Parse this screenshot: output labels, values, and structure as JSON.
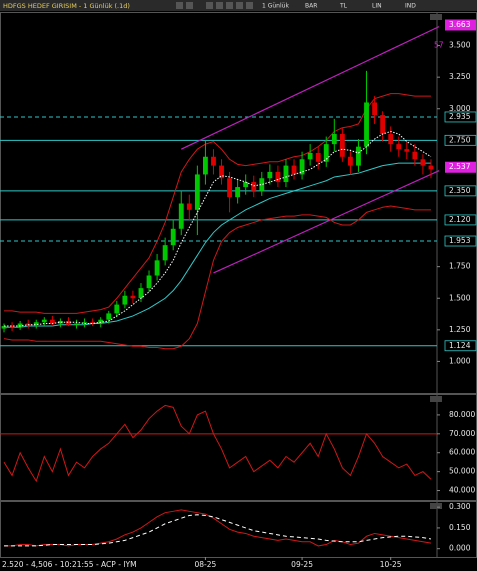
{
  "toolbar": [
    "1 Günlük",
    "BAR",
    "TL",
    "LIN",
    "IND"
  ],
  "status": "2.520 - 4,506 - 10:21:55 - ACP - IYM",
  "chart_data": [
    {
      "type": "candlestick",
      "title": "HDFGS HEDEF GIRISIM - 1 Günlük (.1d)",
      "categories": [
        null,
        null,
        null,
        null,
        null,
        null,
        null,
        null,
        null,
        null,
        null,
        null,
        null,
        null,
        null,
        null,
        null,
        null,
        null,
        null,
        null,
        null,
        null,
        null,
        null,
        "08-25",
        null,
        null,
        null,
        null,
        null,
        null,
        null,
        null,
        null,
        null,
        null,
        "09-25",
        null,
        null,
        null,
        null,
        null,
        null,
        null,
        null,
        null,
        null,
        "10-25",
        null,
        null,
        null,
        null,
        null
      ],
      "open": [
        1.26,
        1.28,
        1.27,
        1.3,
        1.29,
        1.31,
        1.33,
        1.3,
        1.32,
        1.29,
        1.3,
        1.31,
        1.3,
        1.33,
        1.38,
        1.45,
        1.52,
        1.5,
        1.58,
        1.68,
        1.8,
        1.92,
        2.05,
        2.25,
        2.2,
        2.48,
        2.62,
        2.55,
        2.45,
        2.3,
        2.38,
        2.42,
        2.35,
        2.45,
        2.5,
        2.42,
        2.55,
        2.48,
        2.6,
        2.65,
        2.58,
        2.72,
        2.8,
        2.62,
        2.55,
        2.7,
        3.05,
        2.95,
        2.8,
        2.72,
        2.68,
        2.66,
        2.6,
        2.55
      ],
      "high": [
        1.3,
        1.31,
        1.32,
        1.33,
        1.33,
        1.35,
        1.36,
        1.34,
        1.35,
        1.33,
        1.34,
        1.34,
        1.35,
        1.4,
        1.48,
        1.56,
        1.56,
        1.62,
        1.72,
        1.85,
        1.98,
        2.12,
        2.35,
        2.32,
        2.55,
        2.75,
        2.68,
        2.6,
        2.5,
        2.44,
        2.48,
        2.47,
        2.5,
        2.56,
        2.55,
        2.6,
        2.6,
        2.66,
        2.72,
        2.7,
        2.78,
        2.92,
        2.85,
        2.68,
        2.76,
        3.3,
        3.1,
        2.98,
        2.86,
        2.78,
        2.74,
        2.72,
        2.64,
        2.6
      ],
      "low": [
        1.23,
        1.24,
        1.25,
        1.26,
        1.26,
        1.28,
        1.28,
        1.27,
        1.28,
        1.26,
        1.27,
        1.28,
        1.27,
        1.3,
        1.35,
        1.42,
        1.46,
        1.47,
        1.55,
        1.64,
        1.76,
        1.88,
        2.0,
        2.12,
        2.0,
        2.4,
        2.48,
        2.4,
        2.18,
        2.25,
        2.32,
        2.3,
        2.31,
        2.4,
        2.38,
        2.38,
        2.44,
        2.44,
        2.55,
        2.52,
        2.54,
        2.66,
        2.58,
        2.48,
        2.5,
        2.64,
        2.88,
        2.74,
        2.66,
        2.62,
        2.6,
        2.55,
        2.48,
        2.45
      ],
      "close": [
        1.28,
        1.27,
        1.3,
        1.29,
        1.31,
        1.33,
        1.3,
        1.32,
        1.29,
        1.3,
        1.31,
        1.3,
        1.33,
        1.38,
        1.45,
        1.52,
        1.5,
        1.58,
        1.68,
        1.8,
        1.92,
        2.05,
        2.25,
        2.2,
        2.48,
        2.62,
        2.55,
        2.45,
        2.3,
        2.38,
        2.42,
        2.35,
        2.45,
        2.5,
        2.42,
        2.55,
        2.48,
        2.6,
        2.65,
        2.58,
        2.72,
        2.8,
        2.62,
        2.55,
        2.7,
        3.05,
        2.95,
        2.8,
        2.72,
        2.68,
        2.66,
        2.6,
        2.55,
        2.52
      ],
      "up_color": "#00c800",
      "down_color": "#e00000",
      "series": [
        {
          "color": "#d01818",
          "style": "solid",
          "values": [
            1.4,
            1.4,
            1.39,
            1.39,
            1.39,
            1.38,
            1.38,
            1.38,
            1.38,
            1.38,
            1.39,
            1.4,
            1.41,
            1.43,
            1.5,
            1.58,
            1.66,
            1.74,
            1.82,
            1.95,
            2.1,
            2.3,
            2.5,
            2.6,
            2.68,
            2.72,
            2.74,
            2.68,
            2.6,
            2.56,
            2.55,
            2.56,
            2.57,
            2.58,
            2.58,
            2.6,
            2.62,
            2.63,
            2.66,
            2.7,
            2.75,
            2.82,
            2.85,
            2.86,
            2.88,
            3.0,
            3.08,
            3.1,
            3.12,
            3.12,
            3.11,
            3.1,
            3.1,
            3.1
          ]
        },
        {
          "color": "#d01818",
          "style": "solid",
          "values": [
            1.18,
            1.17,
            1.17,
            1.17,
            1.16,
            1.16,
            1.16,
            1.16,
            1.16,
            1.16,
            1.16,
            1.16,
            1.16,
            1.15,
            1.14,
            1.13,
            1.12,
            1.12,
            1.11,
            1.11,
            1.1,
            1.1,
            1.12,
            1.18,
            1.3,
            1.55,
            1.8,
            1.95,
            2.02,
            2.06,
            2.08,
            2.1,
            2.12,
            2.13,
            2.14,
            2.15,
            2.15,
            2.16,
            2.16,
            2.15,
            2.14,
            2.1,
            2.08,
            2.08,
            2.12,
            2.18,
            2.2,
            2.22,
            2.23,
            2.22,
            2.21,
            2.2,
            2.2,
            2.2
          ]
        },
        {
          "color": "#30c8c8",
          "style": "solid",
          "values": [
            1.27,
            1.27,
            1.27,
            1.28,
            1.28,
            1.28,
            1.28,
            1.29,
            1.29,
            1.29,
            1.29,
            1.3,
            1.3,
            1.31,
            1.32,
            1.34,
            1.36,
            1.39,
            1.42,
            1.46,
            1.5,
            1.56,
            1.64,
            1.74,
            1.84,
            1.94,
            2.02,
            2.08,
            2.12,
            2.16,
            2.2,
            2.23,
            2.26,
            2.29,
            2.31,
            2.33,
            2.35,
            2.37,
            2.39,
            2.41,
            2.43,
            2.46,
            2.47,
            2.48,
            2.49,
            2.51,
            2.53,
            2.55,
            2.56,
            2.57,
            2.57,
            2.57,
            2.57,
            2.57
          ]
        },
        {
          "color": "#ffffff",
          "style": "dotted",
          "values": [
            1.28,
            1.28,
            1.28,
            1.29,
            1.29,
            1.3,
            1.3,
            1.31,
            1.31,
            1.31,
            1.3,
            1.3,
            1.31,
            1.32,
            1.36,
            1.4,
            1.45,
            1.5,
            1.55,
            1.62,
            1.7,
            1.8,
            1.94,
            2.06,
            2.18,
            2.3,
            2.42,
            2.47,
            2.46,
            2.44,
            2.42,
            2.39,
            2.4,
            2.42,
            2.44,
            2.46,
            2.48,
            2.5,
            2.52,
            2.56,
            2.6,
            2.66,
            2.68,
            2.67,
            2.65,
            2.7,
            2.76,
            2.8,
            2.82,
            2.8,
            2.74,
            2.7,
            2.66,
            2.62
          ]
        }
      ],
      "trendlines": [
        {
          "color": "#c020c0",
          "x": [
            22,
            54
          ],
          "y": [
            2.68,
            3.65
          ]
        },
        {
          "color": "#c020c0",
          "x": [
            26,
            54
          ],
          "y": [
            1.7,
            2.51
          ]
        }
      ],
      "levels": [
        {
          "value": 2.935,
          "label": "2.935",
          "color": "#30c8c8",
          "style": "dashed"
        },
        {
          "value": 2.75,
          "label": "2.750",
          "color": "#30c8c8",
          "style": "solid"
        },
        {
          "value": 2.35,
          "label": "2.350",
          "color": "#30c8c8",
          "style": "solid"
        },
        {
          "value": 2.12,
          "label": "2.120",
          "color": "#30c8c8",
          "style": "solid"
        },
        {
          "value": 1.953,
          "label": "1.953",
          "color": "#30c8c8",
          "style": "dashed"
        },
        {
          "value": 1.124,
          "label": "1.124",
          "color": "#30c8c8",
          "style": "solid"
        }
      ],
      "markers": [
        {
          "value": 3.663,
          "color": "#e020e0"
        },
        {
          "value": 2.537,
          "color": "#e020e0"
        }
      ],
      "readout": 57,
      "ylim": [
        0.75,
        3.75
      ],
      "yticks": [
        {
          "value": 3.5,
          "label": "3.500"
        },
        {
          "value": 3.25,
          "label": "3.250"
        },
        {
          "value": 3.0,
          "label": "3.000"
        },
        {
          "value": 1.75,
          "label": "1.750"
        },
        {
          "value": 1.5,
          "label": "1.500"
        },
        {
          "value": 1.25,
          "label": "1.250"
        },
        {
          "value": 1.0,
          "label": "1.000"
        }
      ]
    },
    {
      "type": "line",
      "series": [
        {
          "color": "#d01818",
          "style": "solid",
          "values": [
            55,
            48,
            60,
            52,
            45,
            58,
            50,
            62,
            48,
            55,
            52,
            58,
            62,
            65,
            70,
            75,
            68,
            72,
            78,
            82,
            85,
            84,
            74,
            70,
            80,
            82,
            70,
            62,
            52,
            55,
            58,
            50,
            53,
            56,
            52,
            58,
            55,
            60,
            65,
            58,
            70,
            62,
            52,
            48,
            58,
            70,
            65,
            58,
            55,
            52,
            54,
            48,
            50,
            46
          ]
        }
      ],
      "levels": [
        {
          "value": 70,
          "color": "#d01818",
          "style": "solid"
        }
      ],
      "ylim": [
        35,
        90
      ],
      "yticks": [
        {
          "value": 80,
          "label": "80.000"
        },
        {
          "value": 70,
          "label": "70.000"
        },
        {
          "value": 60,
          "label": "60.000"
        },
        {
          "value": 50,
          "label": "50.000"
        },
        {
          "value": 40,
          "label": "40.000"
        }
      ]
    },
    {
      "type": "line",
      "series": [
        {
          "color": "#d01818",
          "style": "solid",
          "values": [
            0.02,
            0.02,
            0.03,
            0.03,
            0.02,
            0.03,
            0.03,
            0.03,
            0.02,
            0.03,
            0.03,
            0.03,
            0.04,
            0.05,
            0.07,
            0.1,
            0.12,
            0.15,
            0.19,
            0.23,
            0.26,
            0.27,
            0.28,
            0.27,
            0.26,
            0.25,
            0.22,
            0.18,
            0.14,
            0.12,
            0.11,
            0.09,
            0.08,
            0.07,
            0.06,
            0.07,
            0.06,
            0.05,
            0.05,
            0.02,
            0.03,
            0.06,
            0.05,
            0.03,
            0.04,
            0.09,
            0.11,
            0.1,
            0.09,
            0.08,
            0.07,
            0.06,
            0.05,
            0.04
          ]
        },
        {
          "color": "#ffffff",
          "style": "dashed",
          "values": [
            0.02,
            0.02,
            0.02,
            0.02,
            0.02,
            0.025,
            0.03,
            0.03,
            0.03,
            0.03,
            0.03,
            0.03,
            0.035,
            0.04,
            0.05,
            0.06,
            0.08,
            0.1,
            0.12,
            0.15,
            0.18,
            0.2,
            0.22,
            0.24,
            0.245,
            0.24,
            0.23,
            0.21,
            0.19,
            0.17,
            0.15,
            0.13,
            0.12,
            0.11,
            0.1,
            0.09,
            0.085,
            0.08,
            0.075,
            0.07,
            0.06,
            0.055,
            0.05,
            0.05,
            0.05,
            0.06,
            0.07,
            0.08,
            0.085,
            0.09,
            0.09,
            0.085,
            0.08,
            0.07
          ]
        }
      ],
      "ylim": [
        -0.06,
        0.33
      ],
      "yticks": [
        {
          "value": 0.3,
          "label": "0.300"
        },
        {
          "value": 0.15,
          "label": "0.150"
        },
        {
          "value": 0,
          "label": "0.000"
        }
      ]
    }
  ]
}
